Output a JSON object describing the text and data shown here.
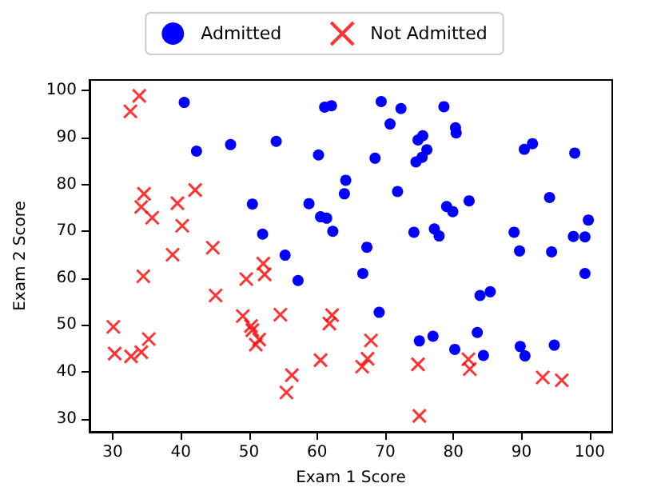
{
  "chart_data": {
    "type": "scatter",
    "xlabel": "Exam 1 Score",
    "ylabel": "Exam 2 Score",
    "xlim": [
      26.6,
      103.3
    ],
    "ylim": [
      27.2,
      102.3
    ],
    "xticks": [
      30,
      40,
      50,
      60,
      70,
      80,
      90,
      100
    ],
    "yticks": [
      30,
      40,
      50,
      60,
      70,
      80,
      90,
      100
    ],
    "grid": false,
    "legend": "top",
    "series": [
      {
        "name": "Admitted",
        "color": "#0000ff",
        "marker": "circle",
        "x": [
          60.2,
          79.0,
          61.1,
          75.0,
          76.1,
          84.4,
          82.3,
          69.4,
          54.0,
          69.1,
          70.7,
          77.0,
          89.7,
          77.9,
          62.3,
          80.2,
          61.4,
          85.4,
          52.0,
          64.2,
          83.9,
          94.4,
          77.2,
          97.8,
          62.1,
          91.6,
          79.9,
          99.3,
          90.5,
          97.6,
          74.2,
          71.8,
          75.4,
          40.5,
          80.3,
          66.7,
          64.0,
          72.3,
          60.5,
          58.8,
          99.8,
          47.3,
          50.5,
          88.9,
          94.8,
          67.3,
          57.2,
          80.4,
          68.5,
          75.5,
          78.6,
          94.1,
          90.4,
          74.5,
          89.8,
          83.5,
          42.3,
          99.3,
          55.3,
          74.8
        ],
        "values": [
          86.3,
          75.3,
          96.5,
          46.6,
          87.4,
          43.5,
          76.5,
          97.7,
          89.2,
          52.7,
          92.9,
          47.6,
          65.8,
          69.0,
          70.0,
          44.8,
          72.8,
          57.1,
          69.4,
          80.9,
          56.3,
          65.6,
          70.5,
          86.7,
          96.8,
          88.7,
          74.2,
          61.0,
          43.4,
          68.9,
          69.8,
          78.5,
          85.8,
          97.5,
          92.1,
          61.0,
          78.0,
          96.2,
          73.1,
          75.9,
          72.4,
          88.5,
          75.8,
          69.8,
          45.7,
          66.6,
          59.5,
          91.0,
          85.6,
          90.4,
          96.6,
          77.2,
          87.5,
          84.8,
          45.4,
          48.4,
          87.1,
          68.8,
          64.9,
          89.5
        ]
      },
      {
        "name": "Not Admitted",
        "color": "#ff0000",
        "marker": "cross",
        "x": [
          34.6,
          30.3,
          35.8,
          45.1,
          95.9,
          75.0,
          39.5,
          67.9,
          67.4,
          50.5,
          34.2,
          93.1,
          61.8,
          38.8,
          52.1,
          40.2,
          54.6,
          33.9,
          74.8,
          34.2,
          51.5,
          82.4,
          51.0,
          62.2,
          34.5,
          50.3,
          49.6,
          32.6,
          35.3,
          56.3,
          30.1,
          44.7,
          66.6,
          49.1,
          32.7,
          60.5,
          82.2,
          42.1,
          52.3,
          55.5
        ],
        "values": [
          78.0,
          43.9,
          72.9,
          56.3,
          38.2,
          30.6,
          76.0,
          46.7,
          42.8,
          48.9,
          44.2,
          38.8,
          50.3,
          65.0,
          63.1,
          71.2,
          52.2,
          98.9,
          41.6,
          75.2,
          46.9,
          40.6,
          45.8,
          52.1,
          60.4,
          49.8,
          59.8,
          95.6,
          47.0,
          39.3,
          49.6,
          66.5,
          41.1,
          51.9,
          43.3,
          42.5,
          42.7,
          78.8,
          60.8,
          35.6
        ]
      }
    ]
  }
}
